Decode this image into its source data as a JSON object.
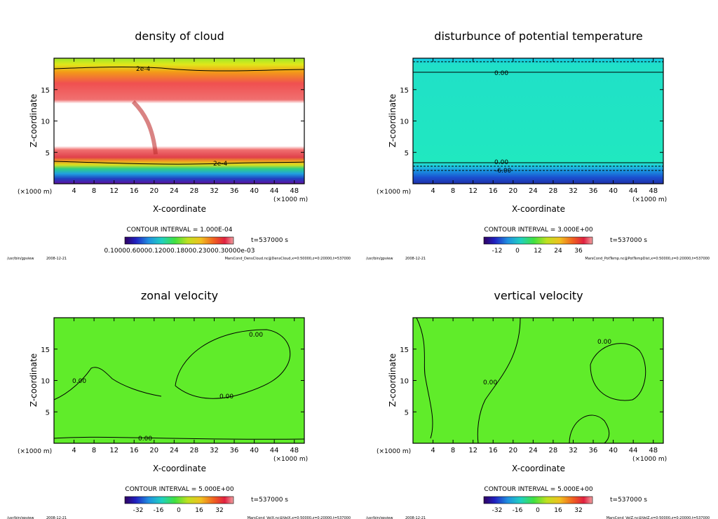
{
  "chart_data": [
    {
      "type": "heatmap",
      "title": "density of cloud",
      "xlabel": "X-coordinate",
      "ylabel": "Z-coordinate",
      "x_unit": "(×1000 m)",
      "y_unit": "(×1000 m)",
      "xlim": [
        0,
        50
      ],
      "ylim": [
        0,
        20
      ],
      "xticks": [
        4,
        8,
        12,
        16,
        20,
        24,
        28,
        32,
        36,
        40,
        44,
        48
      ],
      "yticks": [
        5,
        10,
        15
      ],
      "contour_interval": "CONTOUR INTERVAL = 1.000E-04",
      "time": "t=537000 s",
      "colorbar_labels": "0.10000.60000.12000.18000.23000.30000e-03",
      "contour_labels": [
        "2e-4",
        "2e-4"
      ],
      "footer_left": "/usr/bin/gpview",
      "date": "2008-12-21",
      "footer_right": "MarsCond_DensCloud.nc@DensCloud,x=0:50000,z=0:20000,t=537000"
    },
    {
      "type": "heatmap",
      "title": "disturbunce of potential temperature",
      "xlabel": "X-coordinate",
      "ylabel": "Z-coordinate",
      "x_unit": "(×1000 m)",
      "y_unit": "(×1000 m)",
      "xlim": [
        0,
        50
      ],
      "ylim": [
        0,
        20
      ],
      "xticks": [
        4,
        8,
        12,
        16,
        20,
        24,
        28,
        32,
        36,
        40,
        44,
        48
      ],
      "yticks": [
        5,
        10,
        15
      ],
      "contour_interval": "CONTOUR INTERVAL = 3.000E+00",
      "time": "t=537000 s",
      "colorbar_ticks": [
        "-12",
        "0",
        "12",
        "24",
        "36"
      ],
      "contour_labels": [
        "0.00",
        "0.00",
        "-6.00"
      ],
      "footer_left": "/usr/bin/gpview",
      "date": "2008-12-21",
      "footer_right": "MarsCond_PotTemp.nc@PotTempDist,x=0:50000,z=0:20000,t=537000"
    },
    {
      "type": "heatmap",
      "title": "zonal velocity",
      "xlabel": "X-coordinate",
      "ylabel": "Z-coordinate",
      "x_unit": "(×1000 m)",
      "y_unit": "(×1000 m)",
      "xlim": [
        0,
        50
      ],
      "ylim": [
        0,
        20
      ],
      "xticks": [
        4,
        8,
        12,
        16,
        20,
        24,
        28,
        32,
        36,
        40,
        44,
        48
      ],
      "yticks": [
        5,
        10,
        15
      ],
      "contour_interval": "CONTOUR INTERVAL = 5.000E+00",
      "time": "t=537000 s",
      "colorbar_ticks": [
        "-32",
        "-16",
        "0",
        "16",
        "32"
      ],
      "contour_labels": [
        "0.00",
        "0.00",
        "0.00",
        "0.00"
      ],
      "footer_left": "/usr/bin/gpview",
      "date": "2008-12-21",
      "footer_right": "MarsCond_VelX.nc@VelX,x=0:50000,z=0:20000,t=537000"
    },
    {
      "type": "heatmap",
      "title": "vertical velocity",
      "xlabel": "X-coordinate",
      "ylabel": "Z-coordinate",
      "x_unit": "(×1000 m)",
      "y_unit": "(×1000 m)",
      "xlim": [
        0,
        50
      ],
      "ylim": [
        0,
        20
      ],
      "xticks": [
        4,
        8,
        12,
        16,
        20,
        24,
        28,
        32,
        36,
        40,
        44,
        48
      ],
      "yticks": [
        5,
        10,
        15
      ],
      "contour_interval": "CONTOUR INTERVAL = 5.000E+00",
      "time": "t=537000 s",
      "colorbar_ticks": [
        "-32",
        "-16",
        "0",
        "16",
        "32"
      ],
      "contour_labels": [
        "0.00",
        "0.00"
      ],
      "footer_left": "/usr/bin/gpview",
      "date": "2008-12-21",
      "footer_right": "MarsCond_VelZ.nc@VelZ,x=0:50000,z=0:20000,t=537000"
    }
  ]
}
